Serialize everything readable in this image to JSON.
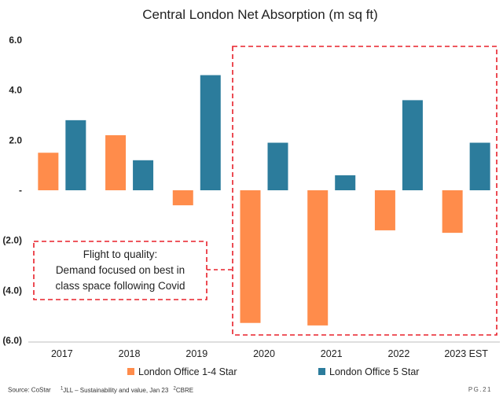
{
  "chart_data": {
    "type": "bar",
    "title": "Central London Net Absorption (m sq ft)",
    "categories": [
      "2017",
      "2018",
      "2019",
      "2020",
      "2021",
      "2022",
      "2023 EST"
    ],
    "series": [
      {
        "name": "London Office 1-4 Star",
        "color": "#FF8C4B",
        "values": [
          1.5,
          2.2,
          -0.6,
          -5.3,
          -5.4,
          -1.6,
          -1.7
        ]
      },
      {
        "name": "London Office 5 Star",
        "color": "#2C7C9C",
        "values": [
          2.8,
          1.2,
          4.6,
          1.9,
          0.6,
          3.6,
          1.9
        ]
      }
    ],
    "ylim": [
      -6.0,
      6.0
    ],
    "yticks": [
      {
        "value": 6,
        "label": "6.0"
      },
      {
        "value": 4,
        "label": "4.0"
      },
      {
        "value": 2,
        "label": "2.0"
      },
      {
        "value": 0,
        "label": "-"
      },
      {
        "value": -2,
        "label": "(2.0)"
      },
      {
        "value": -4,
        "label": "(4.0)"
      },
      {
        "value": -6,
        "label": "(6.0)"
      }
    ],
    "xlabel": "",
    "ylabel": "",
    "legend_position": "bottom",
    "annotation": {
      "lines": [
        "Flight to quality:",
        "Demand focused on best in",
        "class space following Covid"
      ],
      "color": "#E8202A"
    }
  },
  "footer": {
    "source": "Source: CoStar",
    "note1_num": "1",
    "note1": "JLL – Sustainability and value, Jan 23",
    "note2_num": "2",
    "note2": "CBRE",
    "page": "PG.21"
  }
}
